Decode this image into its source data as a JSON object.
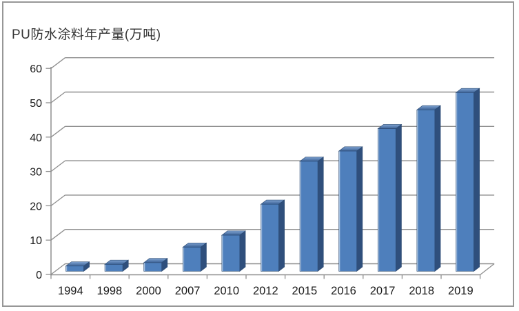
{
  "title": "PU防水涂料年产量(万吨)",
  "chart_data": {
    "type": "bar",
    "title": "PU防水涂料年产量(万吨)",
    "categories": [
      "1994",
      "1998",
      "2000",
      "2007",
      "2010",
      "2012",
      "2015",
      "2016",
      "2017",
      "2018",
      "2019"
    ],
    "values": [
      1.5,
      2,
      2.5,
      7,
      10.5,
      19.5,
      32,
      35,
      41.5,
      47,
      52
    ],
    "xlabel": "",
    "ylabel": "",
    "ylim": [
      0,
      60
    ],
    "yticks": [
      0,
      10,
      20,
      30,
      40,
      50,
      60
    ],
    "grid": true,
    "legend": false,
    "style": "3d-column",
    "colors": {
      "bar_front": "#4E7FBC",
      "bar_side": "#2F4F7C",
      "bar_top_back": "#7FA3D2",
      "bar_top_front": "#3A6094",
      "bar_edge": "#2B4A72",
      "bar_left_highlight": "#D9E7F5",
      "gridline": "#8E8E8E",
      "axis": "#8E8E8E",
      "tick_label": "#1A1A1A",
      "title_color": "#333333",
      "frame_border": "#979797",
      "background": "#FFFFFF"
    }
  }
}
